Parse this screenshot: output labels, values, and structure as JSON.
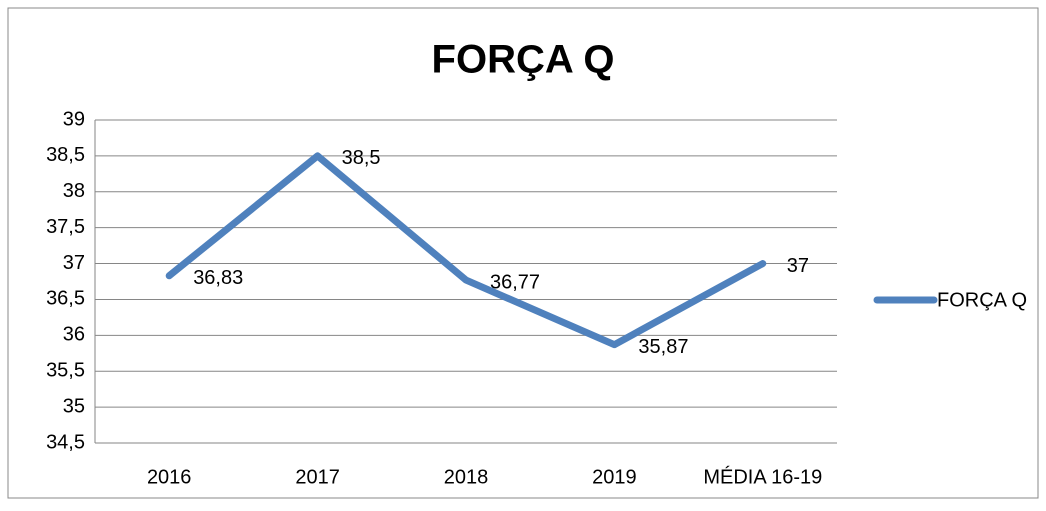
{
  "chart_data": {
    "type": "line",
    "title": "FORÇA Q",
    "categories": [
      "2016",
      "2017",
      "2018",
      "2019",
      "MÉDIA 16-19"
    ],
    "series": [
      {
        "name": "FORÇA Q",
        "color": "#4f81bd",
        "values": [
          36.83,
          38.5,
          36.77,
          35.87,
          37
        ],
        "value_labels": [
          "36,83",
          "38,5",
          "36,77",
          "35,87",
          "37"
        ]
      }
    ],
    "ylim": [
      34.5,
      39
    ],
    "yticks": [
      {
        "value": 34.5,
        "label": "34,5"
      },
      35,
      {
        "value": 35.5,
        "label": "35,5"
      },
      36,
      {
        "value": 36.5,
        "label": "36,5"
      },
      37,
      {
        "value": 37.5,
        "label": "37,5"
      },
      38,
      {
        "value": 38.5,
        "label": "38,5"
      },
      39
    ],
    "grid": true,
    "legend": "right"
  }
}
